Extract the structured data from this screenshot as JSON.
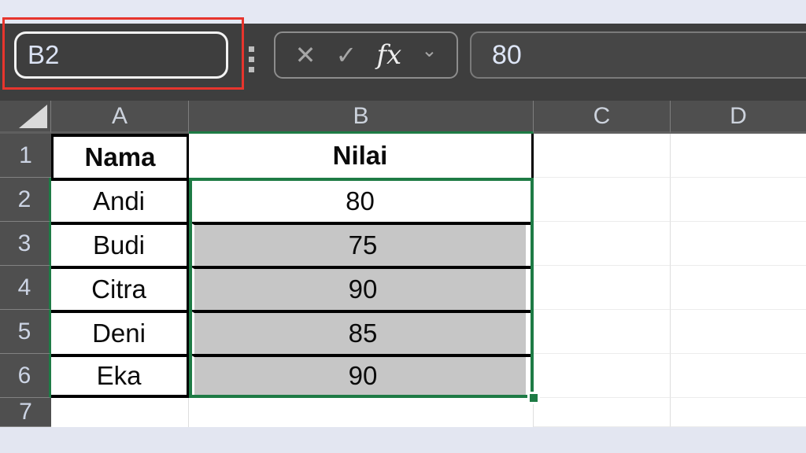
{
  "toolbar": {
    "name_box": {
      "value": "B2"
    },
    "formula_buttons": {
      "cancel": "✕",
      "enter": "✓",
      "fx": "fx",
      "chevron": "⌄"
    },
    "formula_bar": {
      "value": "80"
    }
  },
  "sheet": {
    "column_headers": [
      "A",
      "B",
      "C",
      "D"
    ],
    "rows": [
      {
        "num": "1",
        "a": "Nama",
        "b": "Nilai"
      },
      {
        "num": "2",
        "a": "Andi",
        "b": "80"
      },
      {
        "num": "3",
        "a": "Budi",
        "b": "75"
      },
      {
        "num": "4",
        "a": "Citra",
        "b": "90"
      },
      {
        "num": "5",
        "a": "Deni",
        "b": "85"
      },
      {
        "num": "6",
        "a": "Eka",
        "b": "90"
      },
      {
        "num": "7",
        "a": "",
        "b": ""
      }
    ],
    "selection": {
      "range": "B2:B6",
      "active_cell": "B2"
    }
  },
  "colors": {
    "accent_green": "#1e7b45",
    "annotation_red": "#e7352d",
    "selection_fill": "#c6c6c6",
    "toolbar_bg": "#3e3e3e",
    "header_bg": "#4f4f4f",
    "strip_lavender": "#e5e8f3"
  }
}
